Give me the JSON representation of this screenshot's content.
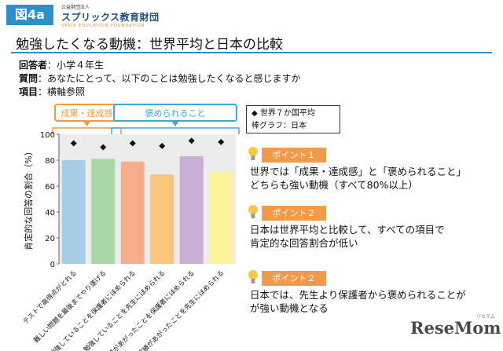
{
  "header": {
    "figure_tag": "図4a",
    "org_small": "公益財団法人",
    "org_name": "スプリックス教育財団",
    "org_en": "SPRIX EDUCATION FOUNDATION",
    "title": "勉強したくなる動機：世界平均と日本の比較"
  },
  "info": {
    "respondent_label": "回答者",
    "respondent": "：小学４年生",
    "question_label": "質問",
    "question": "：あなたにとって、以下のことは勉強したくなると感じますか",
    "item_label": "項目",
    "item": "：横軸参照"
  },
  "legend": {
    "world": "◆ 世界７か国平均",
    "japan": "棒グラフ：日本"
  },
  "chart_data": {
    "type": "bar",
    "ylabel": "肯定的な回答の割合（%）",
    "ylim": [
      0,
      100
    ],
    "yticks": [
      0,
      20,
      40,
      60,
      80,
      100
    ],
    "grid": false,
    "groups": [
      {
        "label": "成果・達成感",
        "color": "#f29a3c",
        "span": [
          0,
          1
        ]
      },
      {
        "label": "褒められること",
        "color": "#3fa9d5",
        "span": [
          2,
          5
        ]
      }
    ],
    "categories": [
      "テストで高得点がとれる",
      "難しい問題を最後までやり遂げる",
      "勉強していることを保護者にほめられる",
      "勉強していることを先生にほめられる",
      "成績があがったことを保護者にほめられる",
      "成績があがったことを先生にほめられる"
    ],
    "bar_colors": [
      "#a6cde6",
      "#a9d8a4",
      "#f7ad8c",
      "#f9c57c",
      "#c9aed6",
      "#fbf39a"
    ],
    "series": [
      {
        "name": "棒グラフ：日本",
        "values": [
          80,
          81,
          79,
          69,
          83,
          71
        ]
      },
      {
        "name": "◆ 世界７か国平均",
        "values": [
          93,
          90,
          93,
          91,
          95,
          94
        ]
      }
    ]
  },
  "points": [
    {
      "label": "ポイント１",
      "lines": [
        "世界では「成果・達成感」と「褒められること」",
        "どちらも強い動機（すべて80%以上）"
      ]
    },
    {
      "label": "ポイント２",
      "lines": [
        "日本は世界平均と比較して、すべての項目で",
        "肯定的な回答割合が低い"
      ]
    },
    {
      "label": "ポイント２",
      "lines": [
        "日本では、先生より保護者から褒められることが",
        "が強い動機となる"
      ]
    }
  ],
  "logo": {
    "text": "ReseMom",
    "ruby": "リセマム"
  },
  "colors": {
    "accent": "#2f8fc9",
    "point": "#f19a4a",
    "bulb": "#f7c84a"
  }
}
